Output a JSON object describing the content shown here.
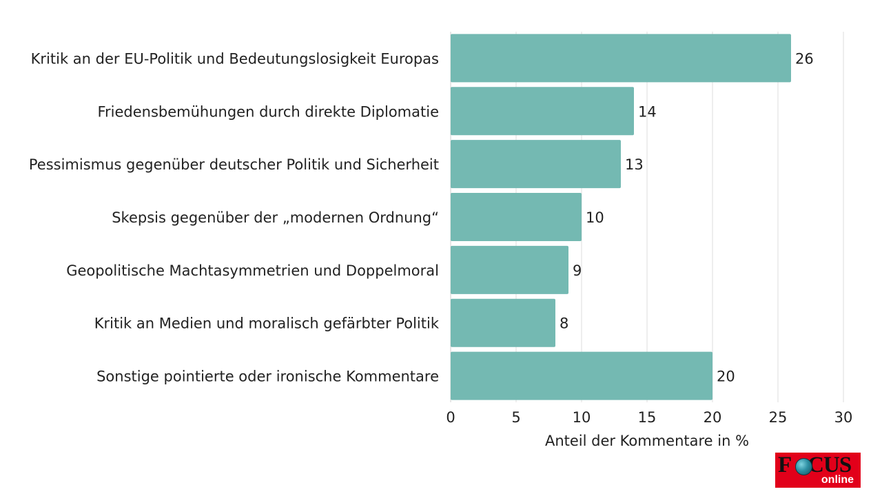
{
  "chart_data": {
    "type": "bar",
    "orientation": "horizontal",
    "categories": [
      "Kritik an der EU-Politik und Bedeutungslosigkeit Europas",
      "Friedensbemühungen durch direkte Diplomatie",
      "Pessimismus gegenüber deutscher Politik und Sicherheit",
      "Skepsis gegenüber der „modernen Ordnung“",
      "Geopolitische Machtasymmetrien und Doppelmoral",
      "Kritik an Medien und moralisch gefärbter Politik",
      "Sonstige pointierte oder ironische Kommentare"
    ],
    "values": [
      26,
      14,
      13,
      10,
      9,
      8,
      20
    ],
    "xlabel": "Anteil der Kommentare in %",
    "ylabel": "",
    "xlim": [
      0,
      30
    ],
    "xticks": [
      0,
      5,
      10,
      15,
      20,
      25,
      30
    ],
    "grid": true,
    "bar_color": "#74b9b2",
    "grid_color": "#dddddd"
  },
  "logo": {
    "word_prefix": "F",
    "word_suffix": "CUS",
    "sub": "online",
    "color": "#e2001a"
  }
}
